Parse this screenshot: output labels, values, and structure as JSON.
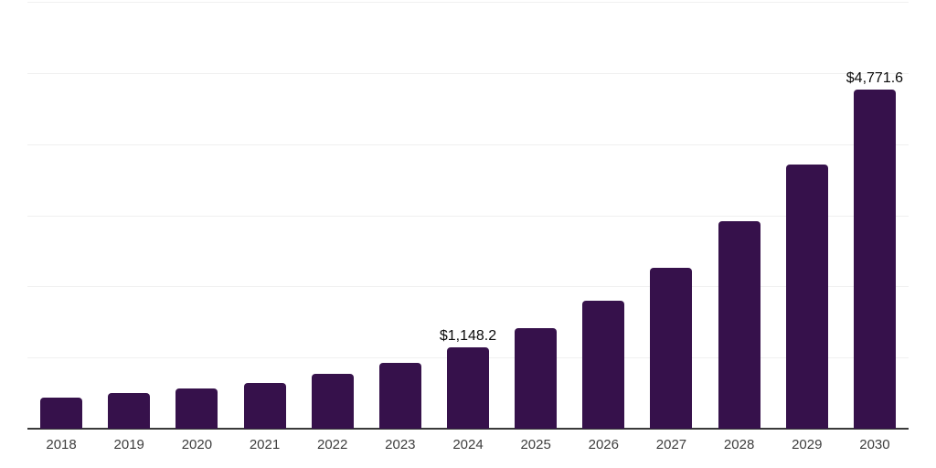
{
  "chart_data": {
    "type": "bar",
    "title": "",
    "xlabel": "",
    "ylabel": "",
    "categories": [
      "2018",
      "2019",
      "2020",
      "2021",
      "2022",
      "2023",
      "2024",
      "2025",
      "2026",
      "2027",
      "2028",
      "2029",
      "2030"
    ],
    "values": [
      440,
      500,
      570,
      640,
      770,
      930,
      1148.2,
      1415,
      1795,
      2265,
      2915,
      3715,
      4771.6
    ],
    "data_labels": [
      {
        "category": "2024",
        "text": "$1,148.2"
      },
      {
        "category": "2030",
        "text": "$4,771.6"
      }
    ],
    "ylim": [
      0,
      6000
    ],
    "gridline_step": 1000,
    "grid": "horizontal-only",
    "legend": "none",
    "colors": {
      "bar": "#36114B",
      "gridline": "#f0f0f0",
      "axis_line": "#3a3a3a",
      "tick_label": "#3d3d3d",
      "data_label": "#0a0a0a",
      "background": "#ffffff"
    }
  }
}
